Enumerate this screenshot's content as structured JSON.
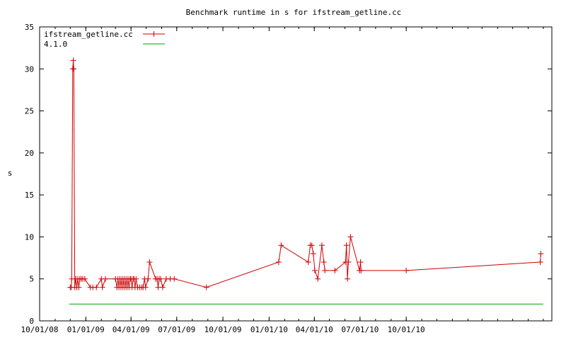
{
  "chart_data": {
    "type": "line",
    "title": "Benchmark runtime in s for ifstream_getline.cc",
    "xlabel": "",
    "ylabel": "s",
    "ylim": [
      0,
      35
    ],
    "xlim": [
      "2008-10-01",
      "2011-07-18"
    ],
    "yticks": [
      "0",
      "5",
      "10",
      "15",
      "20",
      "25",
      "30",
      "35"
    ],
    "xticks": [
      {
        "date": "2008-10-01",
        "label": "10/01/08"
      },
      {
        "date": "2009-01-01",
        "label": "01/01/09"
      },
      {
        "date": "2009-04-01",
        "label": "04/01/09"
      },
      {
        "date": "2009-07-01",
        "label": "07/01/09"
      },
      {
        "date": "2009-10-01",
        "label": "10/01/09"
      },
      {
        "date": "2010-01-01",
        "label": "01/01/10"
      },
      {
        "date": "2010-04-01",
        "label": "04/01/10"
      },
      {
        "date": "2010-07-01",
        "label": "07/01/10"
      },
      {
        "date": "2010-10-01",
        "label": "10/01/10"
      }
    ],
    "legend": {
      "position": "top-left"
    },
    "grid": false,
    "series": [
      {
        "name": "ifstream_getline.cc",
        "color": "#cc0000",
        "marker": "plus",
        "points": [
          [
            "2008-12-01",
            4
          ],
          [
            "2008-12-03",
            4
          ],
          [
            "2008-12-04",
            5
          ],
          [
            "2008-12-06",
            30
          ],
          [
            "2008-12-07",
            31
          ],
          [
            "2008-12-08",
            30
          ],
          [
            "2008-12-10",
            4
          ],
          [
            "2008-12-12",
            5
          ],
          [
            "2008-12-14",
            4
          ],
          [
            "2008-12-16",
            5
          ],
          [
            "2008-12-18",
            4
          ],
          [
            "2008-12-20",
            5
          ],
          [
            "2008-12-23",
            5
          ],
          [
            "2008-12-26",
            5
          ],
          [
            "2008-12-30",
            5
          ],
          [
            "2009-01-10",
            4
          ],
          [
            "2009-01-15",
            4
          ],
          [
            "2009-01-22",
            4
          ],
          [
            "2009-02-01",
            5
          ],
          [
            "2009-02-03",
            4
          ],
          [
            "2009-02-09",
            5
          ],
          [
            "2009-03-01",
            5
          ],
          [
            "2009-03-04",
            4
          ],
          [
            "2009-03-06",
            5
          ],
          [
            "2009-03-08",
            4
          ],
          [
            "2009-03-10",
            5
          ],
          [
            "2009-03-12",
            4
          ],
          [
            "2009-03-14",
            5
          ],
          [
            "2009-03-16",
            4
          ],
          [
            "2009-03-18",
            5
          ],
          [
            "2009-03-20",
            4
          ],
          [
            "2009-03-22",
            5
          ],
          [
            "2009-03-24",
            4
          ],
          [
            "2009-03-26",
            5
          ],
          [
            "2009-03-28",
            4
          ],
          [
            "2009-03-30",
            5
          ],
          [
            "2009-04-01",
            5
          ],
          [
            "2009-04-03",
            4
          ],
          [
            "2009-04-05",
            5
          ],
          [
            "2009-04-07",
            5
          ],
          [
            "2009-04-09",
            4
          ],
          [
            "2009-04-11",
            5
          ],
          [
            "2009-04-14",
            4
          ],
          [
            "2009-04-18",
            4
          ],
          [
            "2009-04-22",
            4
          ],
          [
            "2009-04-25",
            4
          ],
          [
            "2009-04-28",
            5
          ],
          [
            "2009-04-30",
            4
          ],
          [
            "2009-05-05",
            5
          ],
          [
            "2009-05-08",
            7
          ],
          [
            "2009-05-20",
            5
          ],
          [
            "2009-05-23",
            5
          ],
          [
            "2009-05-25",
            4
          ],
          [
            "2009-05-27",
            5
          ],
          [
            "2009-05-30",
            5
          ],
          [
            "2009-06-03",
            4
          ],
          [
            "2009-06-10",
            5
          ],
          [
            "2009-06-18",
            5
          ],
          [
            "2009-06-26",
            5
          ],
          [
            "2009-08-29",
            4
          ],
          [
            "2010-01-20",
            7
          ],
          [
            "2010-01-25",
            9
          ],
          [
            "2010-03-20",
            7
          ],
          [
            "2010-03-24",
            9
          ],
          [
            "2010-03-27",
            9
          ],
          [
            "2010-03-30",
            8
          ],
          [
            "2010-04-02",
            6
          ],
          [
            "2010-04-08",
            5
          ],
          [
            "2010-04-16",
            9
          ],
          [
            "2010-04-20",
            7
          ],
          [
            "2010-04-22",
            6
          ],
          [
            "2010-05-12",
            6
          ],
          [
            "2010-06-02",
            7
          ],
          [
            "2010-06-04",
            9
          ],
          [
            "2010-06-06",
            5
          ],
          [
            "2010-06-08",
            7
          ],
          [
            "2010-06-12",
            10
          ],
          [
            "2010-06-30",
            6
          ],
          [
            "2010-07-02",
            7
          ],
          [
            "2010-07-03",
            6
          ],
          [
            "2010-10-01",
            6
          ],
          [
            "2011-06-25",
            7
          ],
          [
            "2011-06-26",
            8
          ]
        ]
      },
      {
        "name": "4.1.0",
        "color": "#00a000",
        "marker": "none",
        "points": [
          [
            "2008-11-29",
            2
          ],
          [
            "2011-07-01",
            2
          ]
        ]
      }
    ]
  }
}
